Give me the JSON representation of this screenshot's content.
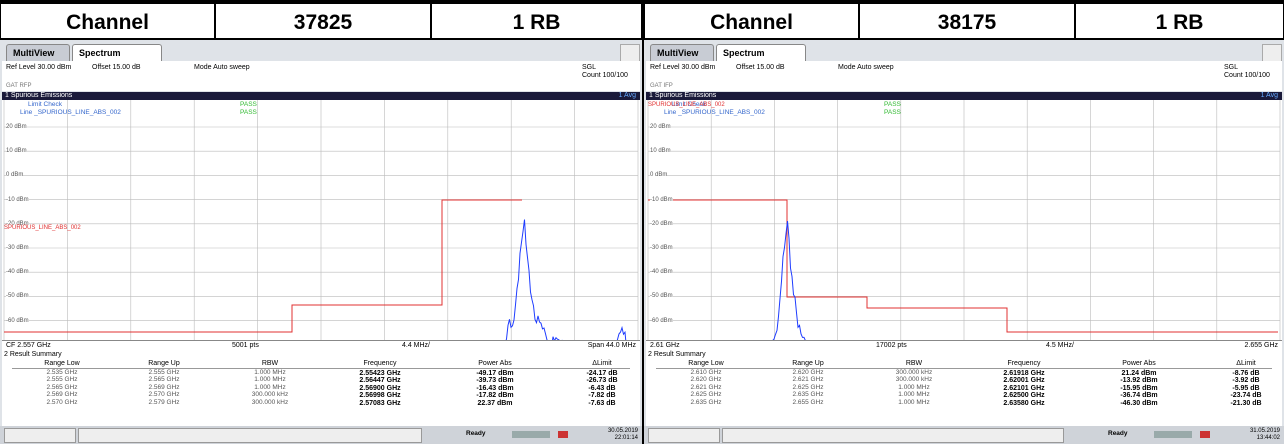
{
  "panels": [
    {
      "header": [
        "Channel",
        "37825",
        "1 RB"
      ],
      "tabs": [
        "MultiView",
        "Spectrum"
      ],
      "settings": {
        "ref_level": "Ref Level 30.00 dBm",
        "offset": "Offset 15.00 dB",
        "mode": "Mode Auto sweep",
        "sgl": "SGL",
        "count": "Count 100/100",
        "gat": "GAT RFP"
      },
      "window_title": "1 Spurious Emissions",
      "trace_label": "1 Avg",
      "limit_check": [
        [
          "Limit Check",
          "PASS"
        ],
        [
          "Line _SPURIOUS_LINE_ABS_002",
          "PASS"
        ]
      ],
      "y_labels": [
        "20 dBm",
        "10 dBm",
        "0 dBm",
        "-10 dBm",
        "-20 dBm",
        "-30 dBm",
        "-40 dBm",
        "-50 dBm",
        "-60 dBm"
      ],
      "limit_line_label": "SPURIOUS_LINE_ABS_002",
      "footer": [
        "CF 2.557 GHz",
        "5001 pts",
        "4.4 MHz/",
        "Span 44.0 MHz"
      ],
      "summary_title": "2 Result Summary",
      "columns": [
        "Range Low",
        "Range Up",
        "RBW",
        "Frequency",
        "Power Abs",
        "ΔLimit"
      ],
      "rows": [
        [
          "2.535 GHz",
          "2.555 GHz",
          "1.000 MHz",
          "2.55423 GHz",
          "-49.17 dBm",
          "-24.17 dB"
        ],
        [
          "2.555 GHz",
          "2.565 GHz",
          "1.000 MHz",
          "2.56447 GHz",
          "-39.73 dBm",
          "-26.73 dB"
        ],
        [
          "2.565 GHz",
          "2.569 GHz",
          "1.000 MHz",
          "2.56900 GHz",
          "-16.43 dBm",
          "-6.43 dB"
        ],
        [
          "2.569 GHz",
          "2.570 GHz",
          "300.000 kHz",
          "2.56998 GHz",
          "-17.82 dBm",
          "-7.82 dB"
        ],
        [
          "2.570 GHz",
          "2.579 GHz",
          "300.000 kHz",
          "2.57083 GHz",
          "22.37 dBm",
          "-7.63 dB"
        ]
      ],
      "status": "Ready",
      "date": "30.05.2019",
      "time": "22:01:14"
    },
    {
      "header": [
        "Channel",
        "38175",
        "1 RB"
      ],
      "tabs": [
        "MultiView",
        "Spectrum"
      ],
      "settings": {
        "ref_level": "Ref Level 30.00 dBm",
        "offset": "Offset 15.00 dB",
        "mode": "Mode Auto sweep",
        "sgl": "SGL",
        "count": "Count 100/100",
        "gat": "GAT IFP"
      },
      "window_title": "1 Spurious Emissions",
      "trace_label": "1 Avg",
      "limit_check": [
        [
          "Limit Check",
          "PASS"
        ],
        [
          "Line _SPURIOUS_LINE_ABS_002",
          "PASS"
        ]
      ],
      "y_labels": [
        "20 dBm",
        "10 dBm",
        "0 dBm",
        "-10 dBm",
        "-20 dBm",
        "-30 dBm",
        "-40 dBm",
        "-50 dBm",
        "-60 dBm"
      ],
      "limit_line_label": "SPURIOUS_LINE_ABS_002",
      "footer": [
        "2.61 GHz",
        "17002 pts",
        "4.5 MHz/",
        "2.655 GHz"
      ],
      "summary_title": "2 Result Summary",
      "columns": [
        "Range Low",
        "Range Up",
        "RBW",
        "Frequency",
        "Power Abs",
        "ΔLimit"
      ],
      "rows": [
        [
          "2.610 GHz",
          "2.620 GHz",
          "300.000 kHz",
          "2.61918 GHz",
          "21.24 dBm",
          "-8.76 dB"
        ],
        [
          "2.620 GHz",
          "2.621 GHz",
          "300.000 kHz",
          "2.62001 GHz",
          "-13.92 dBm",
          "-3.92 dB"
        ],
        [
          "2.621 GHz",
          "2.625 GHz",
          "1.000 MHz",
          "2.62101 GHz",
          "-15.95 dBm",
          "-5.95 dB"
        ],
        [
          "2.625 GHz",
          "2.635 GHz",
          "1.000 MHz",
          "2.62500 GHz",
          "-36.74 dBm",
          "-23.74 dB"
        ],
        [
          "2.635 GHz",
          "2.655 GHz",
          "1.000 MHz",
          "2.63580 GHz",
          "-46.30 dBm",
          "-21.30 dB"
        ]
      ],
      "status": "Ready",
      "date": "31.05.2019",
      "time": "13:44:02"
    }
  ]
}
